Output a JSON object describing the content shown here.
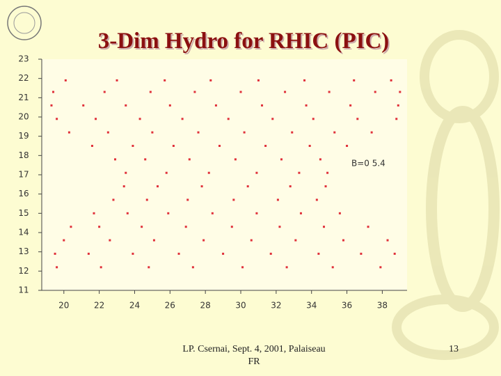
{
  "title": "3-Dim Hydro for RHIC (PIC)",
  "footer": [
    "LP. Csernai, Sept. 4, 2001, Palaiseau",
    "FR"
  ],
  "page_number": "13",
  "chart_data": {
    "type": "scatter",
    "color": "#e0303a",
    "annotation": "B=0 5.4",
    "xlim": [
      18.75,
      39.4
    ],
    "ylim": [
      11,
      23
    ],
    "xticks": [
      20,
      22,
      24,
      26,
      28,
      30,
      32,
      34,
      36,
      38
    ],
    "yticks": [
      11,
      12,
      13,
      14,
      15,
      16,
      17,
      18,
      19,
      20,
      21,
      22,
      23
    ],
    "x": [
      19.6,
      22.1,
      24.8,
      27.3,
      30.1,
      32.6,
      35.2,
      37.9,
      19.5,
      21.4,
      23.9,
      26.5,
      29.0,
      31.7,
      34.4,
      36.8,
      38.7,
      20.0,
      22.6,
      25.1,
      27.9,
      30.6,
      33.1,
      35.8,
      38.3,
      20.4,
      22.0,
      24.4,
      26.9,
      29.5,
      32.2,
      34.7,
      37.2,
      21.7,
      23.6,
      25.9,
      28.4,
      30.9,
      33.4,
      35.6,
      22.8,
      24.7,
      27.0,
      29.6,
      32.1,
      34.3,
      23.4,
      25.3,
      27.8,
      30.4,
      32.8,
      34.8,
      23.5,
      25.8,
      28.2,
      30.9,
      33.3,
      34.9,
      22.9,
      24.6,
      27.1,
      29.7,
      32.3,
      34.5,
      21.6,
      23.9,
      26.2,
      28.8,
      31.4,
      33.9,
      36.0,
      20.3,
      22.5,
      25.0,
      27.6,
      30.2,
      32.9,
      35.3,
      37.4,
      19.6,
      21.8,
      24.3,
      26.7,
      29.3,
      31.8,
      34.1,
      36.6,
      38.8,
      19.3,
      21.1,
      23.5,
      26.0,
      28.6,
      31.2,
      33.7,
      36.2,
      38.9,
      19.4,
      22.3,
      24.9,
      27.4,
      30.0,
      32.5,
      35.0,
      37.6,
      39.0,
      20.1,
      23.0,
      25.7,
      28.3,
      31.0,
      33.6,
      36.4,
      38.5
    ],
    "values": [
      12.2,
      12.2,
      12.2,
      12.2,
      12.2,
      12.2,
      12.2,
      12.2,
      12.9,
      12.9,
      12.9,
      12.9,
      12.9,
      12.9,
      12.9,
      12.9,
      12.9,
      13.6,
      13.6,
      13.6,
      13.6,
      13.6,
      13.6,
      13.6,
      13.6,
      14.3,
      14.3,
      14.3,
      14.3,
      14.3,
      14.3,
      14.3,
      14.3,
      15.0,
      15.0,
      15.0,
      15.0,
      15.0,
      15.0,
      15.0,
      15.7,
      15.7,
      15.7,
      15.7,
      15.7,
      15.7,
      16.4,
      16.4,
      16.4,
      16.4,
      16.4,
      16.4,
      17.1,
      17.1,
      17.1,
      17.1,
      17.1,
      17.1,
      17.8,
      17.8,
      17.8,
      17.8,
      17.8,
      17.8,
      18.5,
      18.5,
      18.5,
      18.5,
      18.5,
      18.5,
      18.5,
      19.2,
      19.2,
      19.2,
      19.2,
      19.2,
      19.2,
      19.2,
      19.2,
      19.9,
      19.9,
      19.9,
      19.9,
      19.9,
      19.9,
      19.9,
      19.9,
      19.9,
      20.6,
      20.6,
      20.6,
      20.6,
      20.6,
      20.6,
      20.6,
      20.6,
      20.6,
      21.3,
      21.3,
      21.3,
      21.3,
      21.3,
      21.3,
      21.3,
      21.3,
      21.3,
      21.9,
      21.9,
      21.9,
      21.9,
      21.9,
      21.9,
      21.9,
      21.9
    ]
  }
}
